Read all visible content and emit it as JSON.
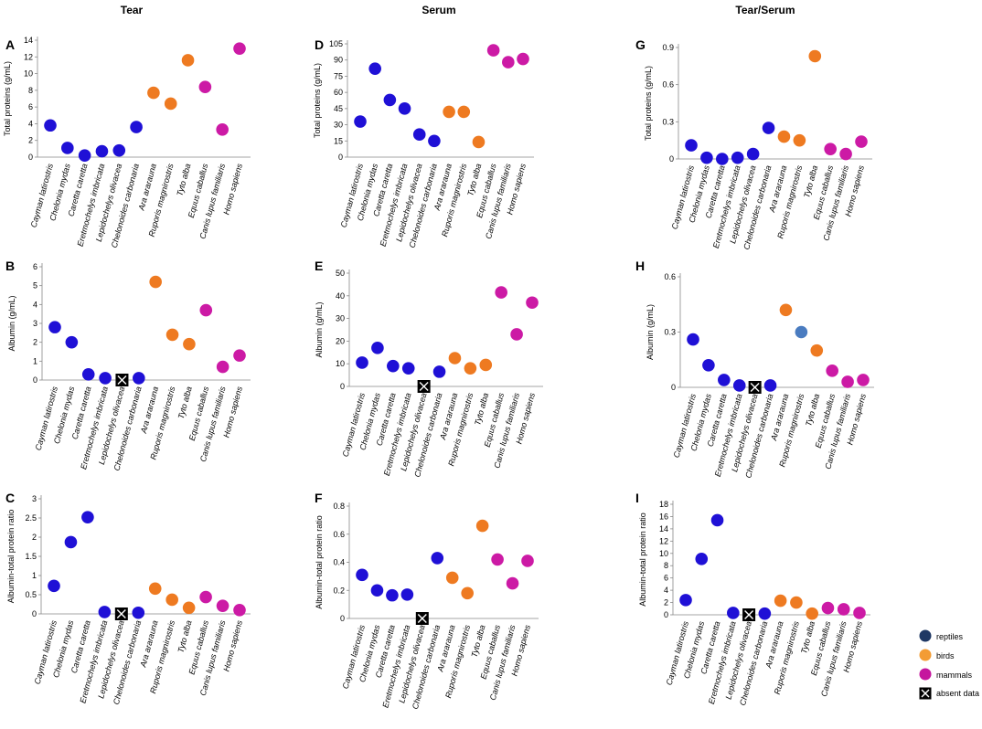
{
  "colors": {
    "reptiles": "#1f10d6",
    "birds": "#ee7a21",
    "mammals": "#cc1aa5",
    "reptiles_legend": "#1f3864",
    "birds_legend": "#f39c34",
    "mammals_legend": "#c5169e",
    "highlight": "#4a7cc0"
  },
  "species": [
    "Cayman latirostris",
    "Chelonia mydas",
    "Caretta caretta",
    "Eretmochelys imbricata",
    "Lepidochelys olivacea",
    "Chelonoides carbonaria",
    "Ara ararauna",
    "Ruporis magnirostris",
    "Tyto alba",
    "Equus caballus",
    "Canis lupus familiaris",
    "Homo sapiens"
  ],
  "groups": [
    "reptiles",
    "reptiles",
    "reptiles",
    "reptiles",
    "reptiles",
    "reptiles",
    "birds",
    "birds",
    "birds",
    "mammals",
    "mammals",
    "mammals"
  ],
  "columns": [
    "Tear",
    "Serum",
    "Tear/Serum"
  ],
  "legend": {
    "reptiles": "reptiles",
    "birds": "birds",
    "mammals": "mammals",
    "absent": "absent data"
  },
  "chart_data": [
    {
      "id": "A",
      "type": "scatter",
      "title": "Tear",
      "ylabel": "Total proteins (g/mL)",
      "ylim": [
        0,
        14
      ],
      "yticks": [
        "0",
        "2",
        "4",
        "6",
        "8",
        "10",
        "12",
        "14"
      ],
      "values": [
        3.8,
        1.1,
        0.2,
        0.7,
        0.8,
        3.6,
        7.7,
        6.4,
        11.6,
        8.4,
        3.3,
        13.0
      ]
    },
    {
      "id": "B",
      "type": "scatter",
      "title": "",
      "ylabel": "Albumin (g/mL)",
      "ylim": [
        0,
        6
      ],
      "yticks": [
        "0",
        "1",
        "2",
        "3",
        "4",
        "5",
        "6"
      ],
      "values": [
        2.8,
        2.0,
        0.3,
        0.1,
        null,
        0.1,
        5.2,
        2.4,
        1.9,
        3.7,
        0.7,
        1.3
      ],
      "absent": [
        4
      ]
    },
    {
      "id": "C",
      "type": "scatter",
      "title": "",
      "ylabel": "Albumin-total protein ratio",
      "ylim": [
        0,
        3
      ],
      "yticks": [
        "0",
        "0.5",
        "1",
        "1.5",
        "2",
        "2.5",
        "3"
      ],
      "values": [
        0.73,
        1.87,
        2.52,
        0.05,
        null,
        0.03,
        0.66,
        0.37,
        0.16,
        0.44,
        0.21,
        0.1
      ],
      "absent": [
        4
      ]
    },
    {
      "id": "D",
      "type": "scatter",
      "title": "Serum",
      "ylabel": "Total proteins (g/mL)",
      "ylim": [
        0,
        105
      ],
      "yticks": [
        "0",
        "15",
        "30",
        "45",
        "60",
        "75",
        "90",
        "105"
      ],
      "values": [
        33,
        82,
        53,
        45,
        21,
        15,
        42,
        42,
        14,
        99,
        88,
        91
      ]
    },
    {
      "id": "E",
      "type": "scatter",
      "title": "",
      "ylabel": "Albumin (g/mL)",
      "ylim": [
        0,
        50
      ],
      "yticks": [
        "0",
        "10",
        "20",
        "30",
        "40",
        "50"
      ],
      "values": [
        10.5,
        17,
        9,
        8,
        null,
        6.5,
        12.5,
        8,
        9.5,
        41.5,
        23,
        37
      ],
      "absent": [
        4
      ]
    },
    {
      "id": "F",
      "type": "scatter",
      "title": "",
      "ylabel": "Albumin-total protein ratio",
      "ylim": [
        0,
        0.8
      ],
      "yticks": [
        "0",
        "0.2",
        "0.4",
        "0.6",
        "0.8"
      ],
      "values": [
        0.31,
        0.2,
        0.165,
        0.17,
        null,
        0.43,
        0.29,
        0.18,
        0.66,
        0.42,
        0.25,
        0.41
      ],
      "absent": [
        4
      ]
    },
    {
      "id": "G",
      "type": "scatter",
      "title": "Tear/Serum",
      "ylabel": "Total proteins (g/mL)",
      "ylim": [
        0,
        0.9
      ],
      "yticks": [
        "0",
        "0.3",
        "0.6",
        "0.9"
      ],
      "values": [
        0.11,
        0.01,
        0.0,
        0.01,
        0.04,
        0.25,
        0.18,
        0.15,
        0.83,
        0.08,
        0.04,
        0.14
      ]
    },
    {
      "id": "H",
      "type": "scatter",
      "title": "",
      "ylabel": "Albumin (g/mL)",
      "ylim": [
        0,
        0.6
      ],
      "yticks": [
        "0",
        "0.3",
        "0.6"
      ],
      "values": [
        0.26,
        0.12,
        0.04,
        0.01,
        null,
        0.01,
        0.42,
        0.3,
        0.2,
        0.09,
        0.03,
        0.04
      ],
      "absent": [
        4
      ],
      "highlight": [
        7
      ]
    },
    {
      "id": "I",
      "type": "scatter",
      "title": "",
      "ylabel": "Albumin-total protein ratio",
      "ylim": [
        0,
        18
      ],
      "yticks": [
        "0",
        "2",
        "4",
        "6",
        "8",
        "10",
        "12",
        "14",
        "16",
        "18"
      ],
      "values": [
        2.4,
        9.1,
        15.4,
        0.3,
        null,
        0.2,
        2.3,
        2.0,
        0.2,
        1.1,
        0.9,
        0.3
      ],
      "absent": [
        4
      ]
    }
  ]
}
